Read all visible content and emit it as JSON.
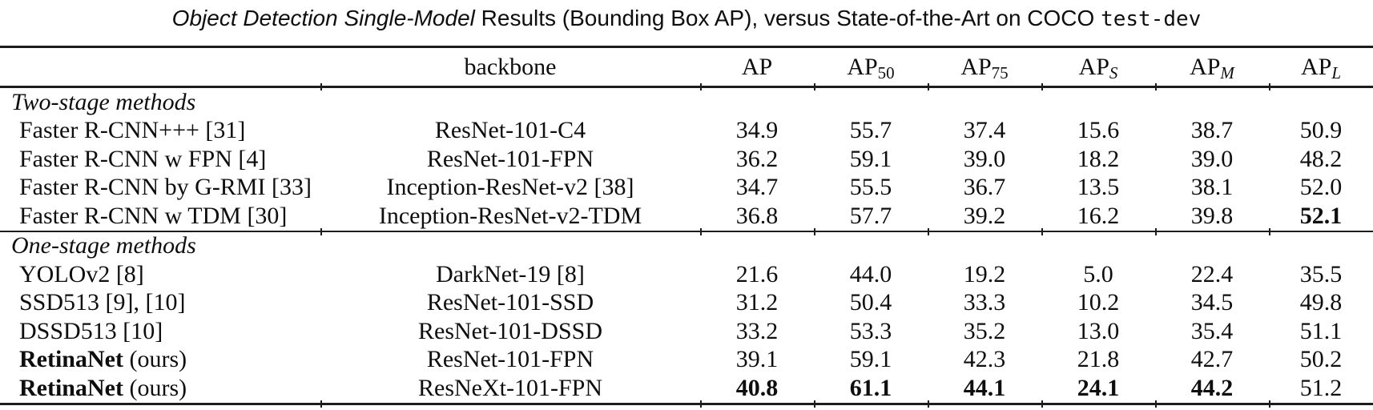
{
  "caption": {
    "italic": "Object Detection Single-Model",
    "regular": " Results (Bounding Box AP), versus State-of-the-Art on COCO ",
    "mono": "test-dev"
  },
  "table": {
    "columns": [
      {
        "base": "",
        "sub": "",
        "italic_sub": false
      },
      {
        "base": "backbone",
        "sub": "",
        "italic_sub": false
      },
      {
        "base": "AP",
        "sub": "",
        "italic_sub": false
      },
      {
        "base": "AP",
        "sub": "50",
        "italic_sub": false
      },
      {
        "base": "AP",
        "sub": "75",
        "italic_sub": false
      },
      {
        "base": "AP",
        "sub": "S",
        "italic_sub": true
      },
      {
        "base": "AP",
        "sub": "M",
        "italic_sub": true
      },
      {
        "base": "AP",
        "sub": "L",
        "italic_sub": true
      }
    ],
    "sections": [
      {
        "label": "Two-stage methods",
        "rows": [
          {
            "method_bold": "",
            "method_rest": "Faster R-CNN+++ [31]",
            "backbone": "ResNet-101-C4",
            "values": [
              "34.9",
              "55.7",
              "37.4",
              "15.6",
              "38.7",
              "50.9"
            ],
            "bold_cols": []
          },
          {
            "method_bold": "",
            "method_rest": "Faster R-CNN w FPN [4]",
            "backbone": "ResNet-101-FPN",
            "values": [
              "36.2",
              "59.1",
              "39.0",
              "18.2",
              "39.0",
              "48.2"
            ],
            "bold_cols": []
          },
          {
            "method_bold": "",
            "method_rest": "Faster R-CNN by G-RMI [33]",
            "backbone": "Inception-ResNet-v2 [38]",
            "values": [
              "34.7",
              "55.5",
              "36.7",
              "13.5",
              "38.1",
              "52.0"
            ],
            "bold_cols": []
          },
          {
            "method_bold": "",
            "method_rest": "Faster R-CNN w TDM [30]",
            "backbone": "Inception-ResNet-v2-TDM",
            "values": [
              "36.8",
              "57.7",
              "39.2",
              "16.2",
              "39.8",
              "52.1"
            ],
            "bold_cols": [
              5
            ]
          }
        ]
      },
      {
        "label": "One-stage methods",
        "rows": [
          {
            "method_bold": "",
            "method_rest": "YOLOv2 [8]",
            "backbone": "DarkNet-19 [8]",
            "values": [
              "21.6",
              "44.0",
              "19.2",
              "5.0",
              "22.4",
              "35.5"
            ],
            "bold_cols": []
          },
          {
            "method_bold": "",
            "method_rest": "SSD513 [9], [10]",
            "backbone": "ResNet-101-SSD",
            "values": [
              "31.2",
              "50.4",
              "33.3",
              "10.2",
              "34.5",
              "49.8"
            ],
            "bold_cols": []
          },
          {
            "method_bold": "",
            "method_rest": "DSSD513 [10]",
            "backbone": "ResNet-101-DSSD",
            "values": [
              "33.2",
              "53.3",
              "35.2",
              "13.0",
              "35.4",
              "51.1"
            ],
            "bold_cols": []
          },
          {
            "method_bold": "RetinaNet",
            "method_rest": " (ours)",
            "backbone": "ResNet-101-FPN",
            "values": [
              "39.1",
              "59.1",
              "42.3",
              "21.8",
              "42.7",
              "50.2"
            ],
            "bold_cols": []
          },
          {
            "method_bold": "RetinaNet",
            "method_rest": " (ours)",
            "backbone": "ResNeXt-101-FPN",
            "values": [
              "40.8",
              "61.1",
              "44.1",
              "24.1",
              "44.2",
              "51.2"
            ],
            "bold_cols": [
              0,
              1,
              2,
              3,
              4
            ]
          }
        ]
      }
    ]
  }
}
